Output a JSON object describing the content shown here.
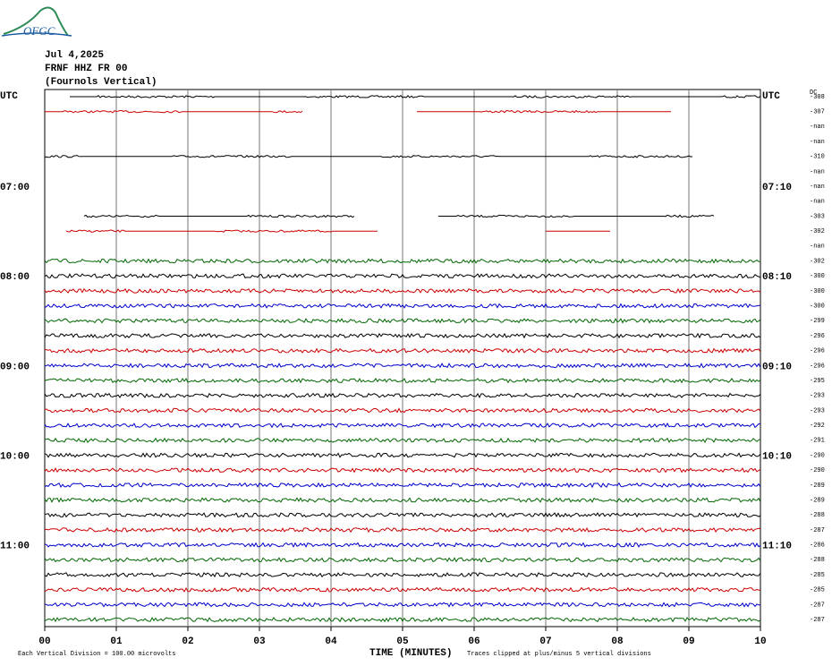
{
  "logo": "OFGC",
  "header": {
    "date": "Jul 4,2025",
    "station": "FRNF HHZ FR 00",
    "location": "(Fournols Vertical)"
  },
  "dc_label": "DC",
  "rows": [
    {
      "color": "#000000",
      "dc": "-308",
      "left": "UTC",
      "right": "UTC",
      "segments": [
        [
          0.35,
          10
        ]
      ]
    },
    {
      "color": "#cc0000",
      "dc": "-307",
      "segments": [
        [
          0,
          3.6
        ],
        [
          5.2,
          8.75
        ]
      ]
    },
    {
      "color": "#0000cc",
      "dc": "-nan",
      "segments": []
    },
    {
      "color": "#006600",
      "dc": "-nan",
      "segments": []
    },
    {
      "color": "#000000",
      "dc": "-310",
      "segments": [
        [
          0,
          9.05
        ]
      ]
    },
    {
      "color": "#cc0000",
      "dc": "-nan",
      "segments": []
    },
    {
      "color": "#0000cc",
      "dc": "-nan",
      "left": "07:00",
      "right": "07:10",
      "segments": []
    },
    {
      "color": "#006600",
      "dc": "-nan",
      "segments": []
    },
    {
      "color": "#000000",
      "dc": "-303",
      "segments": [
        [
          0.55,
          4.35
        ],
        [
          5.5,
          9.35
        ]
      ]
    },
    {
      "color": "#cc0000",
      "dc": "-302",
      "segments": [
        [
          0.3,
          4.65
        ],
        [
          7.0,
          7.9
        ]
      ]
    },
    {
      "color": "#0000cc",
      "dc": "-nan",
      "segments": []
    },
    {
      "color": "#006600",
      "dc": "-302",
      "segments": [
        [
          0,
          10
        ]
      ]
    },
    {
      "color": "#000000",
      "dc": "-300",
      "left": "08:00",
      "right": "08:10",
      "segments": [
        [
          0,
          10
        ]
      ]
    },
    {
      "color": "#cc0000",
      "dc": "-300",
      "segments": [
        [
          0,
          10
        ]
      ]
    },
    {
      "color": "#0000cc",
      "dc": "-300",
      "segments": [
        [
          0,
          10
        ]
      ]
    },
    {
      "color": "#006600",
      "dc": "-299",
      "segments": [
        [
          0,
          10
        ]
      ]
    },
    {
      "color": "#000000",
      "dc": "-296",
      "segments": [
        [
          0,
          10
        ]
      ]
    },
    {
      "color": "#cc0000",
      "dc": "-296",
      "segments": [
        [
          0,
          10
        ]
      ]
    },
    {
      "color": "#0000cc",
      "dc": "-296",
      "left": "09:00",
      "right": "09:10",
      "segments": [
        [
          0,
          10
        ]
      ]
    },
    {
      "color": "#006600",
      "dc": "-295",
      "segments": [
        [
          0,
          10
        ]
      ]
    },
    {
      "color": "#000000",
      "dc": "-293",
      "segments": [
        [
          0,
          10
        ]
      ]
    },
    {
      "color": "#cc0000",
      "dc": "-293",
      "segments": [
        [
          0,
          10
        ]
      ]
    },
    {
      "color": "#0000cc",
      "dc": "-292",
      "segments": [
        [
          0,
          10
        ]
      ]
    },
    {
      "color": "#006600",
      "dc": "-291",
      "segments": [
        [
          0,
          10
        ]
      ]
    },
    {
      "color": "#000000",
      "dc": "-290",
      "left": "10:00",
      "right": "10:10",
      "segments": [
        [
          0,
          10
        ]
      ]
    },
    {
      "color": "#cc0000",
      "dc": "-290",
      "segments": [
        [
          0,
          10
        ]
      ]
    },
    {
      "color": "#0000cc",
      "dc": "-289",
      "segments": [
        [
          0,
          10
        ]
      ]
    },
    {
      "color": "#006600",
      "dc": "-289",
      "segments": [
        [
          0,
          10
        ]
      ]
    },
    {
      "color": "#000000",
      "dc": "-288",
      "segments": [
        [
          0,
          10
        ]
      ]
    },
    {
      "color": "#cc0000",
      "dc": "-287",
      "segments": [
        [
          0,
          10
        ]
      ]
    },
    {
      "color": "#0000cc",
      "dc": "-286",
      "left": "11:00",
      "right": "11:10",
      "segments": [
        [
          0,
          10
        ]
      ]
    },
    {
      "color": "#006600",
      "dc": "-288",
      "segments": [
        [
          0,
          10
        ]
      ]
    },
    {
      "color": "#000000",
      "dc": "-285",
      "segments": [
        [
          0,
          10
        ]
      ]
    },
    {
      "color": "#cc0000",
      "dc": "-285",
      "segments": [
        [
          0,
          10
        ]
      ]
    },
    {
      "color": "#0000cc",
      "dc": "-287",
      "segments": [
        [
          0,
          10
        ]
      ]
    },
    {
      "color": "#006600",
      "dc": "-287",
      "segments": [
        [
          0,
          10
        ]
      ]
    }
  ],
  "x_axis": {
    "title": "TIME (MINUTES)",
    "ticks": [
      "00",
      "01",
      "02",
      "03",
      "04",
      "05",
      "06",
      "07",
      "08",
      "09",
      "10"
    ]
  },
  "footer": {
    "scale": "Each Vertical Division =  100.00 microvolts",
    "clip": "Traces clipped at plus/minus 5 vertical divisions"
  }
}
